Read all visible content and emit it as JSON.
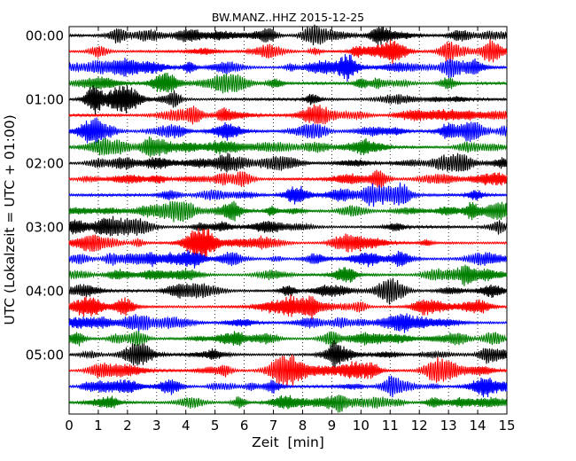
{
  "chart_data": {
    "type": "line",
    "title": "BW.MANZ..HHZ 2015-12-25",
    "xlabel": "Zeit  [min]",
    "ylabel": "UTC (Lokalzeit = UTC + 01:00)",
    "xlim": [
      0,
      15
    ],
    "x_ticks": [
      "0",
      "1",
      "2",
      "3",
      "4",
      "5",
      "6",
      "7",
      "8",
      "9",
      "10",
      "11",
      "12",
      "13",
      "14",
      "15"
    ],
    "y_ticks": [
      "00:00",
      "01:00",
      "02:00",
      "03:00",
      "04:00",
      "05:00"
    ],
    "trace_count": 24,
    "trace_minutes": 15,
    "color_cycle": [
      "#000000",
      "#ff0000",
      "#0000ff",
      "#007f00"
    ],
    "grid": "vertical dotted at each minute"
  }
}
